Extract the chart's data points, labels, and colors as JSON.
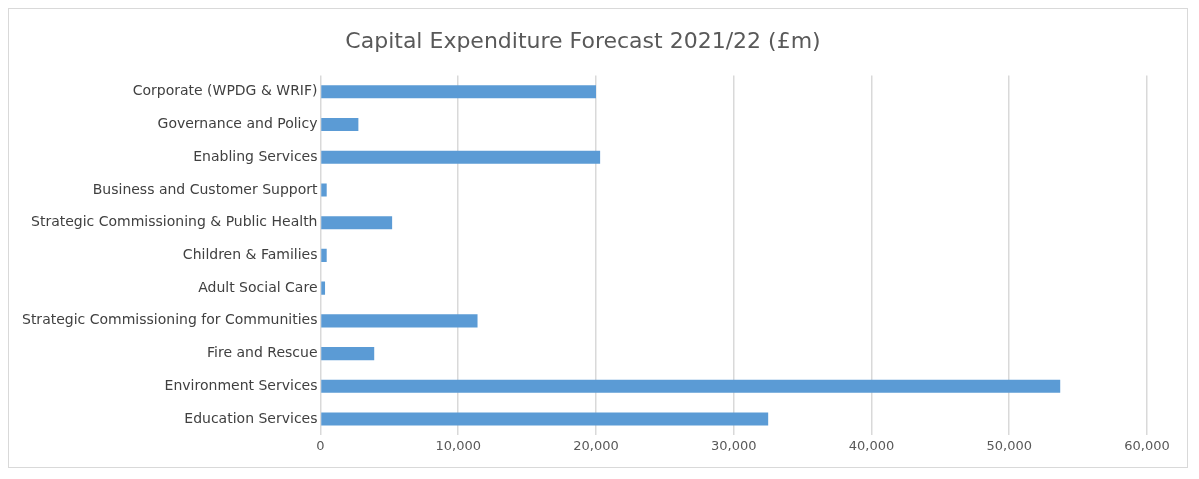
{
  "chart_data": {
    "type": "bar",
    "orientation": "horizontal",
    "title": "Capital Expenditure Forecast 2021/22 (£m)",
    "categories": [
      "Corporate (WPDG & WRIF)",
      "Governance and Policy",
      "Enabling Services",
      "Business and Customer Support",
      "Strategic Commissioning & Public Health",
      "Children & Families",
      "Adult Social Care",
      "Strategic Commissioning for Communities",
      "Fire and Rescue",
      "Environment Services",
      "Education Services"
    ],
    "values": [
      20000,
      2750,
      20300,
      450,
      5200,
      450,
      330,
      11400,
      3900,
      53700,
      32500
    ],
    "color": "#5b9bd5",
    "xlim": [
      0,
      60000
    ],
    "xticks": [
      {
        "value": 0,
        "label": "0"
      },
      {
        "value": 10000,
        "label": "10,000"
      },
      {
        "value": 20000,
        "label": "20,000"
      },
      {
        "value": 30000,
        "label": "30,000"
      },
      {
        "value": 40000,
        "label": "40,000"
      },
      {
        "value": 50000,
        "label": "50,000"
      },
      {
        "value": 60000,
        "label": "60,000"
      }
    ],
    "grid": "x",
    "legend": false
  }
}
